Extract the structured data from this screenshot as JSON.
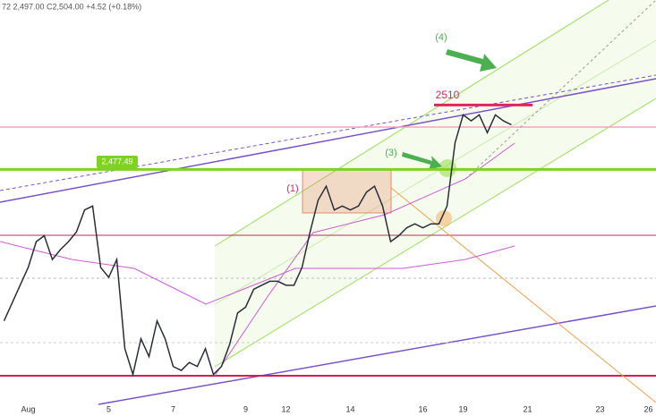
{
  "chart_data": {
    "type": "line",
    "subtitle": "72  2,497.00 C2,504.00 +4.52 (+0.18%)",
    "categories": [
      null,
      null,
      null,
      "Aug",
      null,
      null,
      null,
      null,
      null,
      null,
      null,
      null,
      null,
      "5",
      null,
      null,
      null,
      null,
      null,
      null,
      null,
      "7",
      null,
      null,
      null,
      null,
      null,
      null,
      null,
      null,
      "9",
      null,
      null,
      null,
      null,
      "12",
      null,
      null,
      null,
      null,
      null,
      null,
      null,
      "14",
      null,
      null,
      null,
      null,
      null,
      null,
      null,
      null,
      "16",
      null,
      null,
      null,
      null,
      "19",
      null,
      null,
      null,
      null,
      null,
      null,
      null,
      "21",
      null,
      null,
      null,
      null,
      null,
      null,
      null,
      null,
      "23",
      null,
      null,
      null,
      null,
      null,
      "26"
    ],
    "values": [
      2401,
      2410,
      2419,
      2428,
      2441,
      2444,
      2432,
      2437,
      2441,
      2446,
      2457,
      2459,
      2428,
      2423,
      2432,
      2387,
      2374,
      2392,
      2383,
      2401,
      2392,
      2378,
      2376,
      2380,
      2378,
      2387,
      2374,
      2378,
      2389,
      2405,
      2408,
      2417,
      2419,
      2421,
      2421,
      2419,
      2419,
      2428,
      2446,
      2462,
      2469,
      2457,
      2459,
      2457,
      2459,
      2466,
      2469,
      2459,
      2441,
      2444,
      2448,
      2450,
      2448,
      2450,
      2450,
      2459,
      2491,
      2505,
      2502,
      2505,
      2496,
      2505,
      2502,
      2500,
      null,
      null,
      null,
      null,
      null,
      null,
      null,
      null,
      null,
      null,
      null,
      null,
      null,
      null,
      null,
      null,
      null
    ],
    "color": "#2a2e39",
    "ylim": [
      2353,
      2563
    ],
    "levels": [
      {
        "value": 2477.49,
        "label": "2,477.49"
      },
      2510
    ],
    "level_colors": [
      "#7ed321",
      "#e0245e"
    ],
    "annotations": [
      "(1)",
      "(3)",
      "(4)"
    ]
  }
}
